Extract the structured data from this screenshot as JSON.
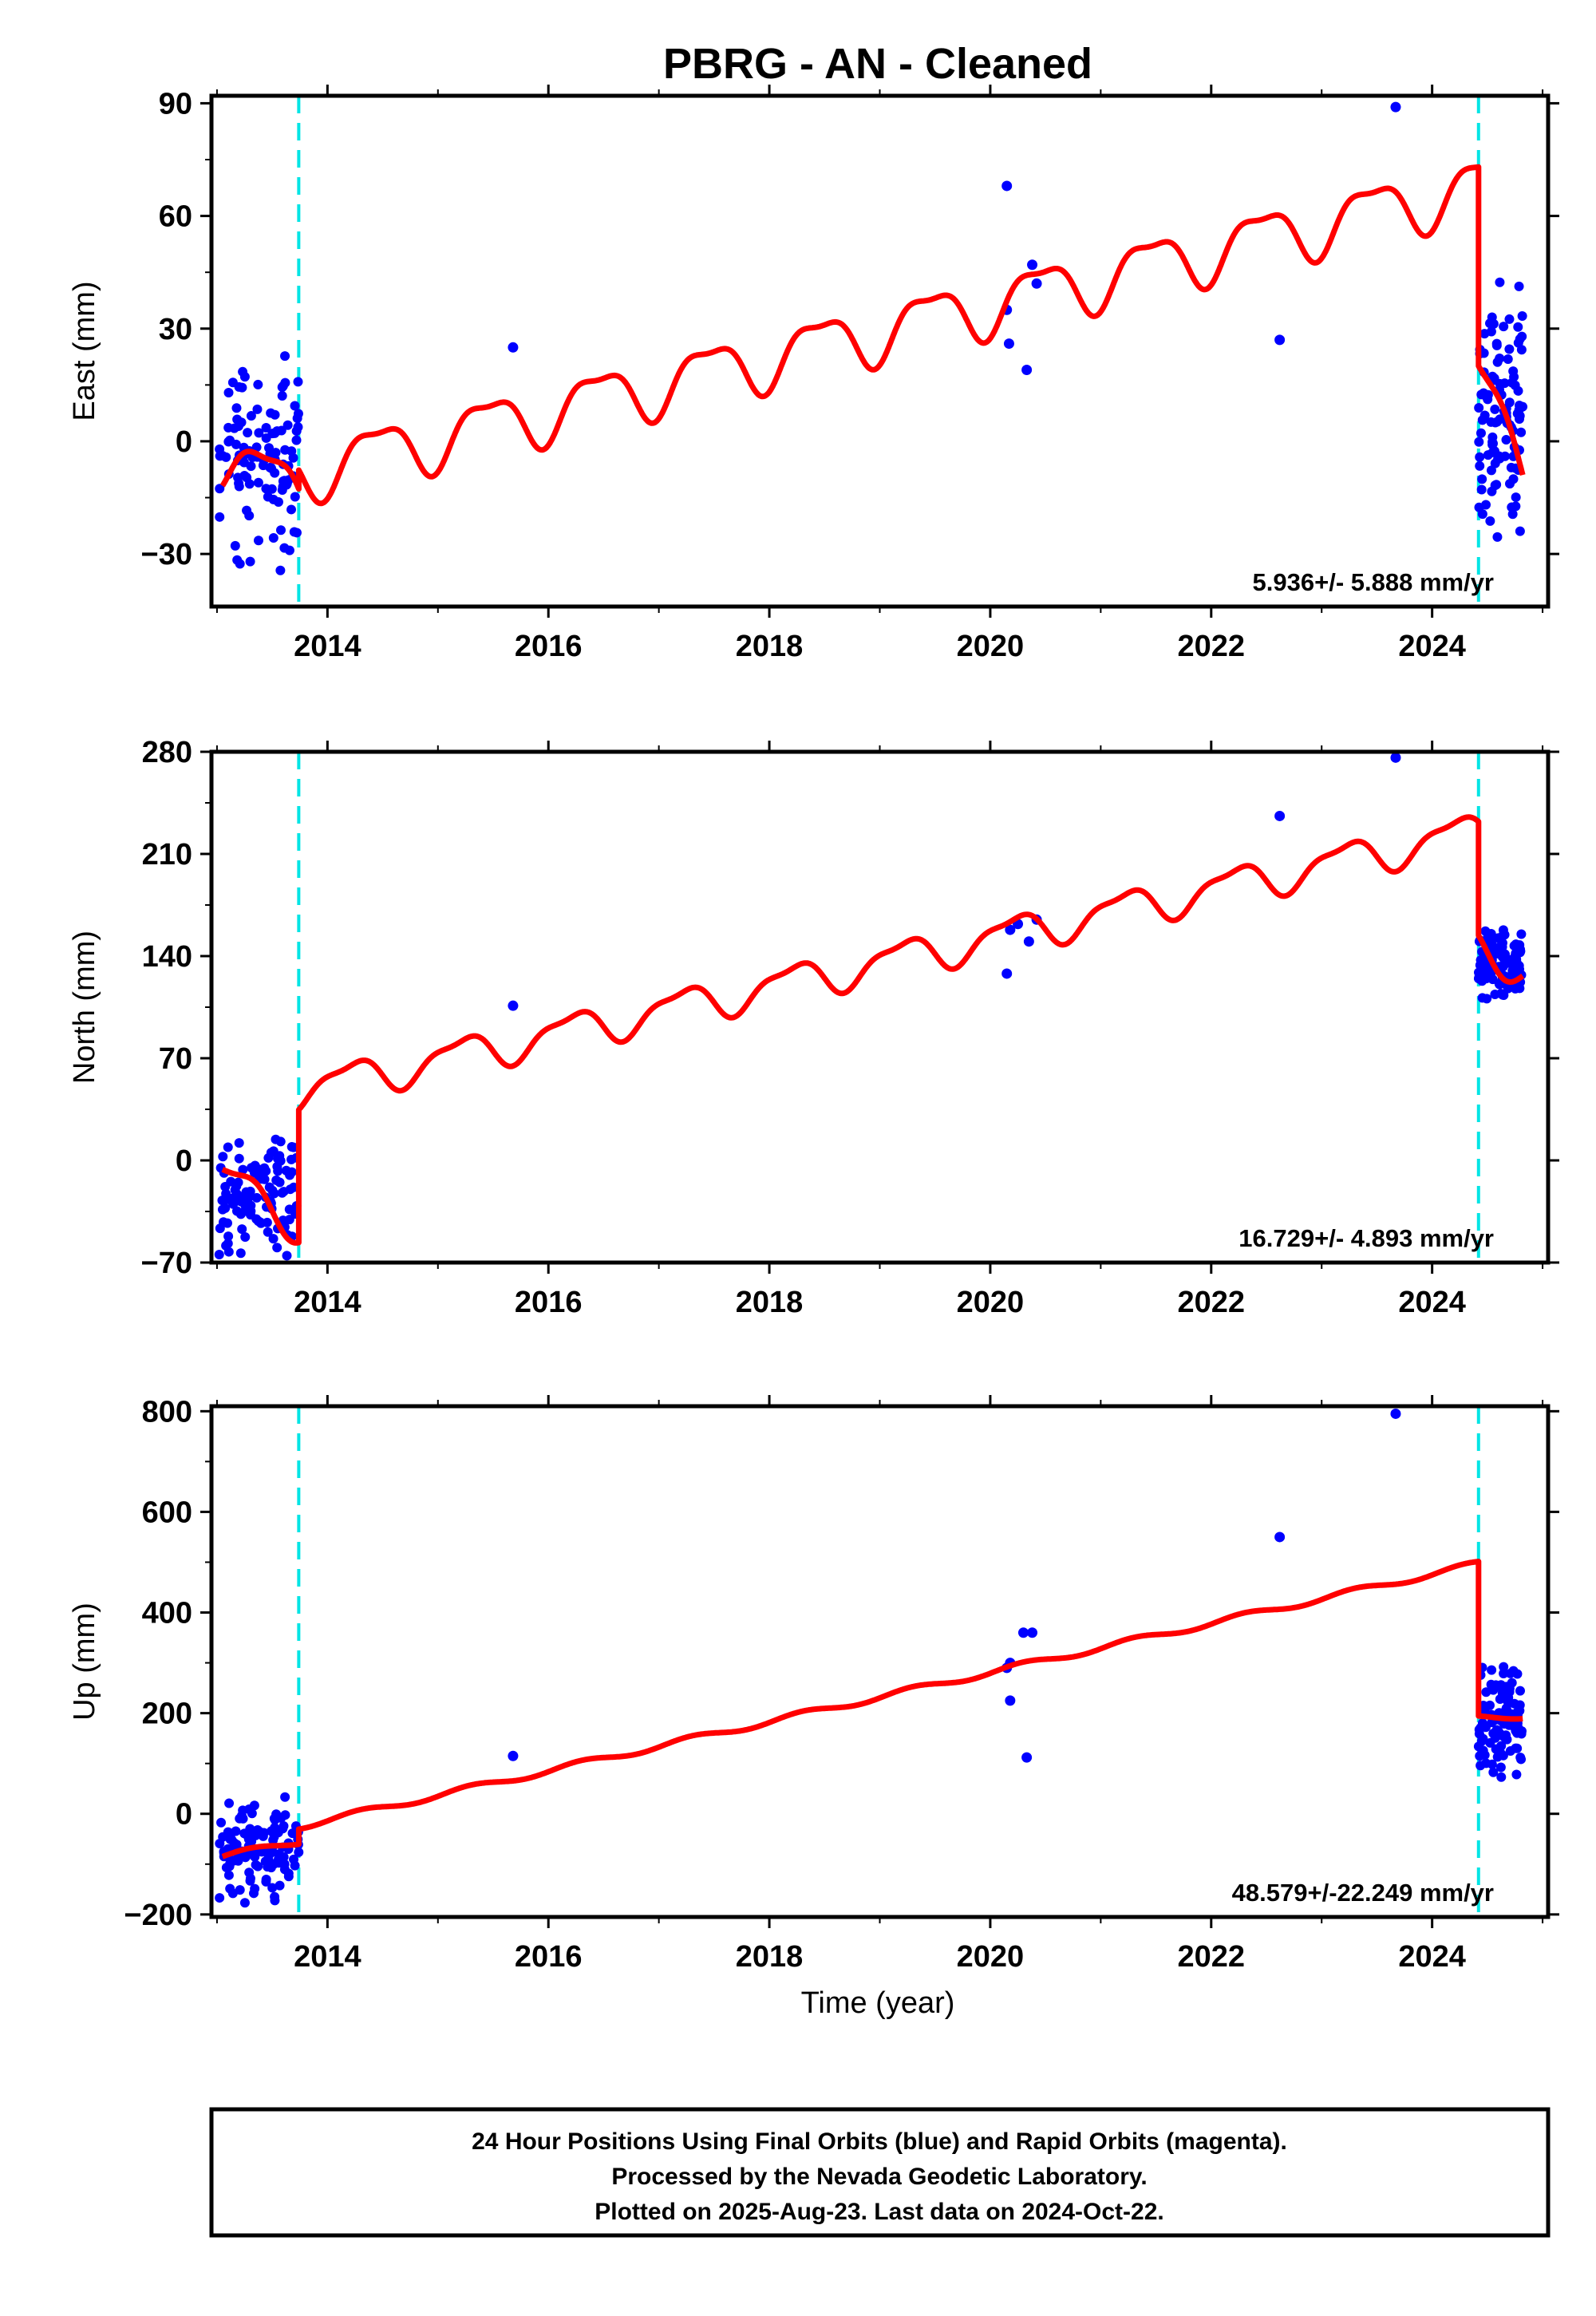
{
  "title": "PBRG  - AN - Cleaned",
  "xlabel": "Time (year)",
  "footer": {
    "line1": "24 Hour Positions Using Final Orbits (blue) and Rapid Orbits (magenta).",
    "line2": "Processed by the Nevada Geodetic Laboratory.",
    "line3": "Plotted on 2025-Aug-23. Last data on 2024-Oct-22."
  },
  "colors": {
    "data": "#0000ff",
    "model": "#ff0000",
    "break": "#00e5e5",
    "axis": "#000000"
  },
  "chart_data": [
    {
      "type": "scatter",
      "component": "east",
      "ylabel": "East (mm)",
      "rate_label": "5.936+/- 5.888 mm/yr",
      "xlim": [
        2012.95,
        2025.05
      ],
      "ylim": [
        -44,
        92
      ],
      "yticks": [
        -30,
        0,
        30,
        60,
        90
      ],
      "xticks": [
        2014,
        2016,
        2018,
        2020,
        2022,
        2024
      ],
      "breaks": [
        2013.74,
        2024.42
      ],
      "clusters": [
        {
          "x": [
            2013.02,
            2013.74
          ],
          "y": [
            -40,
            30
          ]
        },
        {
          "x": [
            2024.42,
            2024.82
          ],
          "y": [
            -30,
            44
          ]
        }
      ],
      "points": [
        [
          2015.68,
          25
        ],
        [
          2020.15,
          68
        ],
        [
          2020.15,
          35
        ],
        [
          2020.17,
          26
        ],
        [
          2020.33,
          19
        ],
        [
          2020.42,
          42
        ],
        [
          2020.38,
          47
        ],
        [
          2022.62,
          27
        ],
        [
          2023.67,
          89
        ]
      ],
      "model": {
        "segments": [
          {
            "x_start": 2013.05,
            "x_end": 2013.74,
            "y_start": -5,
            "y_end": -13
          },
          {
            "x_start": 2013.74,
            "x_end": 2024.42,
            "y_start": -8,
            "y_end": 68
          },
          {
            "x_start": 2024.42,
            "x_end": 2024.82,
            "y_start": 15,
            "y_end": -4
          }
        ],
        "annual_amplitude": 7.5,
        "annual_peak": 0.45,
        "semiannual_amplitude": 2.5,
        "semiannual_peak": 0.2
      }
    },
    {
      "type": "scatter",
      "component": "north",
      "ylabel": "North (mm)",
      "rate_label": "16.729+/- 4.893 mm/yr",
      "xlim": [
        2012.95,
        2025.05
      ],
      "ylim": [
        -70,
        280
      ],
      "yticks": [
        -70,
        0,
        70,
        140,
        210,
        280
      ],
      "xticks": [
        2014,
        2016,
        2018,
        2020,
        2022,
        2024
      ],
      "breaks": [
        2013.74,
        2024.42
      ],
      "clusters": [
        {
          "x": [
            2013.02,
            2013.74
          ],
          "y": [
            -68,
            22
          ]
        },
        {
          "x": [
            2024.42,
            2024.82
          ],
          "y": [
            108,
            163
          ]
        }
      ],
      "points": [
        [
          2015.68,
          106
        ],
        [
          2020.15,
          128
        ],
        [
          2020.18,
          158
        ],
        [
          2020.25,
          162
        ],
        [
          2020.35,
          150
        ],
        [
          2020.42,
          165
        ],
        [
          2022.62,
          236
        ],
        [
          2023.67,
          276
        ]
      ],
      "model": {
        "segments": [
          {
            "x_start": 2013.05,
            "x_end": 2013.74,
            "y_start": -12,
            "y_end": -43
          },
          {
            "x_start": 2013.74,
            "x_end": 2024.42,
            "y_start": 48,
            "y_end": 226
          },
          {
            "x_start": 2024.42,
            "x_end": 2024.82,
            "y_start": 148,
            "y_end": 133
          }
        ],
        "annual_amplitude": 12,
        "annual_peak": 0.2,
        "semiannual_amplitude": 4,
        "semiannual_peak": 0.4
      }
    },
    {
      "type": "scatter",
      "component": "up",
      "ylabel": "Up (mm)",
      "rate_label": "48.579+/-22.249 mm/yr",
      "xlim": [
        2012.95,
        2025.05
      ],
      "ylim": [
        -205,
        810
      ],
      "yticks": [
        -200,
        0,
        200,
        400,
        600,
        800
      ],
      "xticks": [
        2014,
        2016,
        2018,
        2020,
        2022,
        2024
      ],
      "breaks": [
        2013.74,
        2024.42
      ],
      "clusters": [
        {
          "x": [
            2013.02,
            2013.74
          ],
          "y": [
            -190,
            45
          ]
        },
        {
          "x": [
            2024.42,
            2024.82
          ],
          "y": [
            65,
            310
          ]
        }
      ],
      "points": [
        [
          2015.68,
          115
        ],
        [
          2020.15,
          290
        ],
        [
          2020.18,
          300
        ],
        [
          2020.18,
          225
        ],
        [
          2020.3,
          360
        ],
        [
          2020.38,
          360
        ],
        [
          2020.33,
          112
        ],
        [
          2022.62,
          550
        ],
        [
          2023.67,
          795
        ]
      ],
      "model": {
        "segments": [
          {
            "x_start": 2013.05,
            "x_end": 2013.74,
            "y_start": -85,
            "y_end": -55
          },
          {
            "x_start": 2013.74,
            "x_end": 2024.42,
            "y_start": -25,
            "y_end": 497
          },
          {
            "x_start": 2024.42,
            "x_end": 2024.82,
            "y_start": 190,
            "y_end": 195
          }
        ],
        "annual_amplitude": 6,
        "annual_peak": 0.3,
        "semiannual_amplitude": 0,
        "semiannual_peak": 0
      }
    }
  ]
}
